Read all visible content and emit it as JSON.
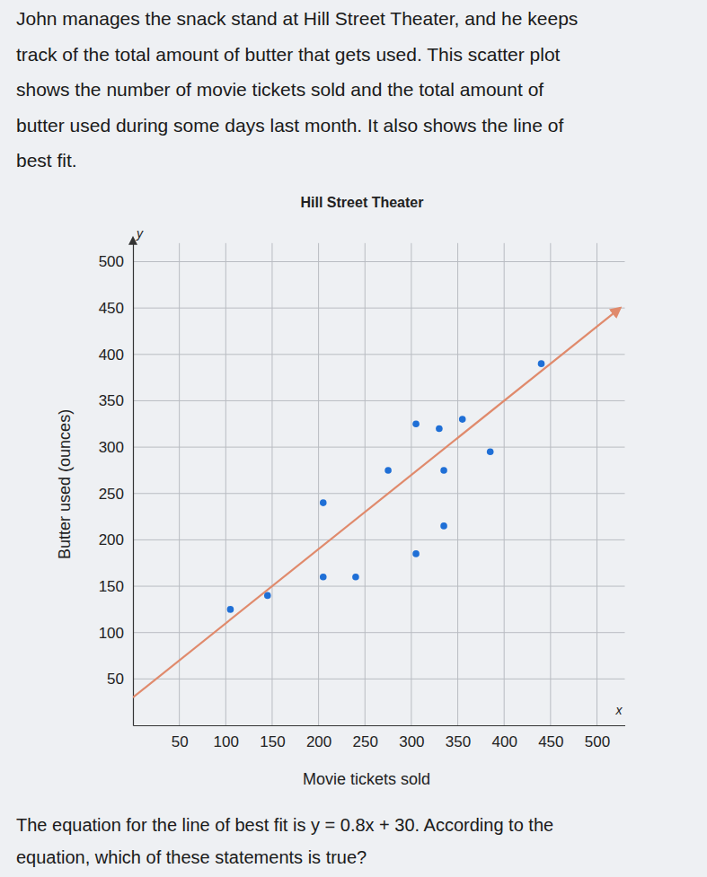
{
  "intro_lines": [
    "John manages the snack stand at Hill Street Theater, and he keeps",
    "track of the total amount of butter that gets used. This scatter plot",
    "shows the number of movie tickets sold and the total amount of",
    "butter used during some days last month. It also shows the line of",
    "best fit."
  ],
  "chart_data": {
    "type": "scatter",
    "title": "Hill Street Theater",
    "x_label": "Movie tickets sold",
    "y_label": "Butter used (ounces)",
    "x_axis_letter": "x",
    "y_axis_letter": "y",
    "xlim": [
      0,
      530
    ],
    "ylim": [
      0,
      520
    ],
    "xticks": [
      50,
      100,
      150,
      200,
      250,
      300,
      350,
      400,
      450,
      500
    ],
    "yticks": [
      50,
      100,
      150,
      200,
      250,
      300,
      350,
      400,
      450,
      500
    ],
    "grid": true,
    "series": [
      {
        "type": "scatter",
        "color": "#1f6fd6",
        "marker": "circle",
        "x": [
          105,
          145,
          205,
          240,
          205,
          275,
          305,
          335,
          335,
          305,
          330,
          355,
          385,
          440
        ],
        "values": [
          125,
          140,
          160,
          160,
          240,
          275,
          185,
          215,
          275,
          325,
          320,
          330,
          295,
          390
        ]
      },
      {
        "type": "line",
        "color": "#e08a6c",
        "line_style": "solid",
        "x": [
          0,
          525
        ],
        "values": [
          30,
          450
        ]
      }
    ]
  },
  "question_lines": [
    "The equation for the line of best fit is y = 0.8x + 30. According to the",
    "equation, which of these statements is true?"
  ]
}
